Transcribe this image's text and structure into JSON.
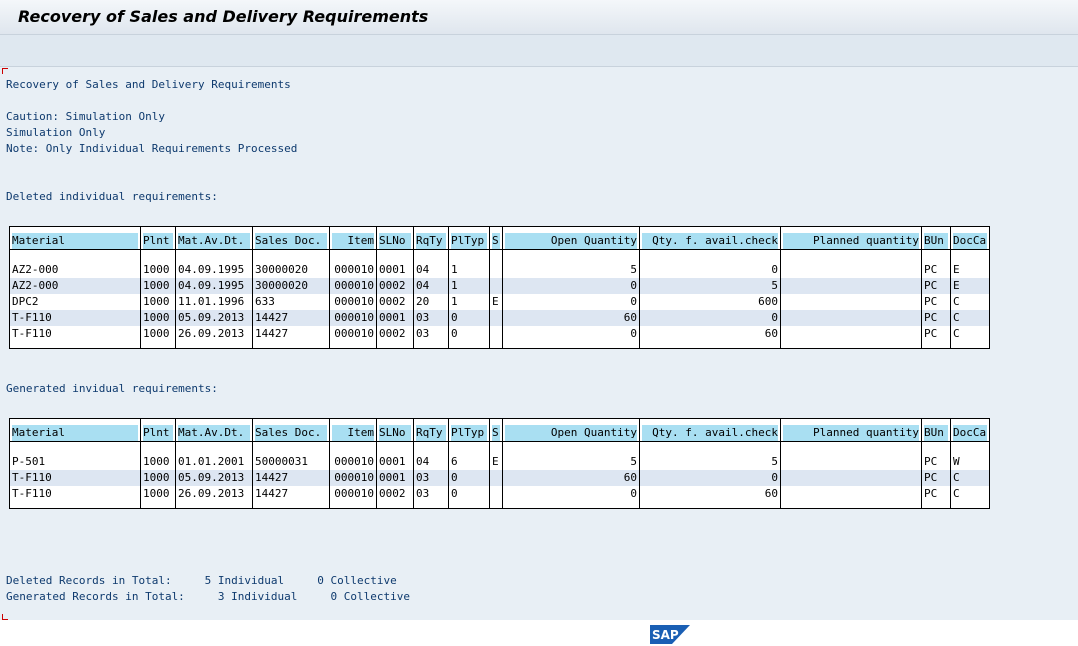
{
  "window": {
    "title": "Recovery of Sales and Delivery Requirements"
  },
  "report": {
    "heading": "Recovery of Sales and Delivery Requirements",
    "caution": "Caution: Simulation Only",
    "simulation": "Simulation Only",
    "note": "Note: Only Individual Requirements Processed",
    "deleted_label": "Deleted individual requirements:",
    "generated_label": "Generated invidual requirements:",
    "deleted_total": "Deleted Records in Total:     5 Individual     0 Collective",
    "generated_total": "Generated Records in Total:     3 Individual     0 Collective"
  },
  "columns": [
    "Material",
    "Plnt",
    "Mat.Av.Dt.",
    "Sales Doc.",
    "Item",
    "SLNo",
    "RqTy",
    "PlTyp",
    "S",
    "Open Quantity",
    "Qty. f. avail.check",
    "Planned quantity",
    "BUn",
    "DocCa"
  ],
  "deleted_rows": [
    [
      "AZ2-000",
      "1000",
      "04.09.1995",
      "30000020",
      "000010",
      "0001",
      "04",
      "1",
      "",
      "5",
      "0",
      "",
      "PC",
      "E"
    ],
    [
      "AZ2-000",
      "1000",
      "04.09.1995",
      "30000020",
      "000010",
      "0002",
      "04",
      "1",
      "",
      "0",
      "5",
      "",
      "PC",
      "E"
    ],
    [
      "DPC2",
      "1000",
      "11.01.1996",
      "633",
      "000010",
      "0002",
      "20",
      "1",
      "E",
      "0",
      "600",
      "",
      "PC",
      "C"
    ],
    [
      "T-F110",
      "1000",
      "05.09.2013",
      "14427",
      "000010",
      "0001",
      "03",
      "0",
      "",
      "60",
      "0",
      "",
      "PC",
      "C"
    ],
    [
      "T-F110",
      "1000",
      "26.09.2013",
      "14427",
      "000010",
      "0002",
      "03",
      "0",
      "",
      "0",
      "60",
      "",
      "PC",
      "C"
    ]
  ],
  "generated_rows": [
    [
      "P-501",
      "1000",
      "01.01.2001",
      "50000031",
      "000010",
      "0001",
      "04",
      "6",
      "E",
      "5",
      "5",
      "",
      "PC",
      "W"
    ],
    [
      "T-F110",
      "1000",
      "05.09.2013",
      "14427",
      "000010",
      "0001",
      "03",
      "0",
      "",
      "60",
      "0",
      "",
      "PC",
      "C"
    ],
    [
      "T-F110",
      "1000",
      "26.09.2013",
      "14427",
      "000010",
      "0002",
      "03",
      "0",
      "",
      "0",
      "60",
      "",
      "PC",
      "C"
    ]
  ],
  "logo": {
    "text": "SAP",
    "color": "#1a5fb4"
  }
}
